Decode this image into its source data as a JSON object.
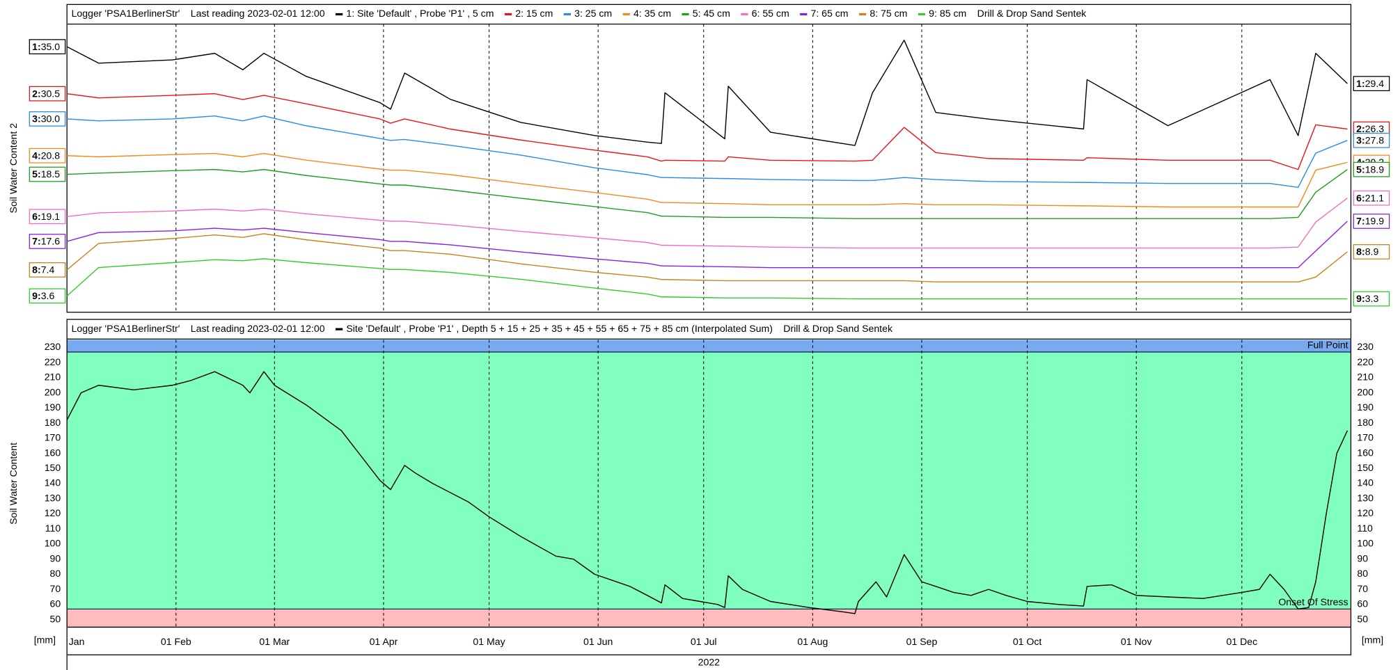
{
  "chart_data": [
    {
      "type": "line",
      "logger": "Logger 'PSA1BerlinerStr'",
      "last_reading": "Last reading 2023-02-01 12:00",
      "sensor": "Drill & Drop Sand Sentek",
      "ylabel": "Soil Water Content 2",
      "xlim": [
        "2022-01-01",
        "2023-01-01"
      ],
      "xticks": [
        "2022-02-01",
        "2022-03-01",
        "2022-04-01",
        "2022-05-01",
        "2022-06-01",
        "2022-07-01",
        "2022-08-01",
        "2022-09-01",
        "2022-10-01",
        "2022-11-01",
        "2022-12-01"
      ],
      "grid": true,
      "x": [
        "2022-01-01",
        "2022-01-10",
        "2022-01-31",
        "2022-02-12",
        "2022-02-20",
        "2022-02-26",
        "2022-03-10",
        "2022-03-31",
        "2022-04-03",
        "2022-04-07",
        "2022-04-20",
        "2022-05-10",
        "2022-05-31",
        "2022-06-15",
        "2022-06-19",
        "2022-06-20",
        "2022-07-07",
        "2022-07-08",
        "2022-07-20",
        "2022-08-13",
        "2022-08-18",
        "2022-08-27",
        "2022-09-05",
        "2022-09-20",
        "2022-10-17",
        "2022-10-18",
        "2022-11-10",
        "2022-12-09",
        "2022-12-17",
        "2022-12-22",
        "2022-12-31"
      ],
      "series": [
        {
          "name": "1: Site 'Default' , Probe 'P1' , 5 cm",
          "tag": "1:",
          "color": "#000000",
          "start_label": "35.0",
          "end_label": "29.4",
          "values": [
            35.0,
            32.5,
            33.0,
            34.0,
            31.5,
            34.0,
            30.5,
            26.5,
            25.5,
            31.0,
            27.0,
            23.5,
            21.5,
            20.5,
            20.3,
            28.0,
            21.0,
            29.0,
            22.0,
            20.0,
            28.0,
            36.0,
            25.0,
            24.0,
            22.5,
            30.0,
            23.0,
            30.0,
            21.5,
            34.0,
            29.4
          ]
        },
        {
          "name": "2: 15 cm",
          "tag": "2:",
          "color": "#e8141b",
          "start_label": "30.5",
          "end_label": "26.3",
          "values": [
            30.5,
            30.0,
            30.3,
            30.5,
            29.8,
            30.3,
            29.3,
            27.5,
            27.0,
            27.5,
            26.3,
            25.0,
            23.8,
            23.0,
            22.5,
            22.6,
            22.5,
            23.0,
            22.6,
            22.5,
            22.6,
            26.5,
            23.5,
            22.8,
            22.6,
            22.9,
            22.6,
            22.6,
            21.5,
            26.8,
            26.3
          ]
        },
        {
          "name": "3: 25 cm",
          "tag": "3:",
          "color": "#2a8ae8",
          "start_label": "30.0",
          "end_label": "27.8",
          "values": [
            30.0,
            29.8,
            30.0,
            30.3,
            29.8,
            30.3,
            29.3,
            28.0,
            27.8,
            27.9,
            27.3,
            26.3,
            25.0,
            24.3,
            24.0,
            24.0,
            23.9,
            23.9,
            23.8,
            23.7,
            23.7,
            24.0,
            23.8,
            23.6,
            23.5,
            23.5,
            23.4,
            23.4,
            23.0,
            26.5,
            27.8
          ]
        },
        {
          "name": "4: 35 cm",
          "tag": "4:",
          "color": "#f08a1c",
          "start_label": "20.8",
          "end_label": "20.2",
          "values": [
            20.8,
            20.7,
            20.9,
            21.0,
            20.7,
            21.0,
            20.4,
            19.6,
            19.5,
            19.5,
            19.1,
            18.3,
            17.5,
            16.9,
            16.6,
            16.6,
            16.5,
            16.5,
            16.4,
            16.4,
            16.4,
            16.5,
            16.4,
            16.4,
            16.3,
            16.3,
            16.2,
            16.2,
            16.2,
            19.5,
            20.2
          ]
        },
        {
          "name": "5: 45 cm",
          "tag": "5:",
          "color": "#1f9e1f",
          "start_label": "18.5",
          "end_label": "18.9",
          "values": [
            18.5,
            18.6,
            18.8,
            18.9,
            18.7,
            18.9,
            18.4,
            17.7,
            17.6,
            17.6,
            17.2,
            16.5,
            15.8,
            15.3,
            15.0,
            15.0,
            14.9,
            14.9,
            14.9,
            14.8,
            14.8,
            14.8,
            14.8,
            14.8,
            14.8,
            14.8,
            14.8,
            14.8,
            14.9,
            17.0,
            18.9
          ]
        },
        {
          "name": "6: 55 cm",
          "tag": "6:",
          "color": "#f06ec0",
          "start_label": "19.1",
          "end_label": "21.1",
          "values": [
            19.1,
            19.5,
            19.7,
            19.9,
            19.7,
            19.9,
            19.4,
            18.7,
            18.6,
            18.6,
            18.2,
            17.5,
            16.8,
            16.3,
            16.0,
            16.0,
            15.9,
            15.9,
            15.8,
            15.7,
            15.7,
            15.7,
            15.7,
            15.7,
            15.7,
            15.7,
            15.7,
            15.7,
            15.8,
            18.5,
            21.1
          ]
        },
        {
          "name": "7: 65 cm",
          "tag": "7:",
          "color": "#8b1ee8",
          "start_label": "17.6",
          "end_label": "19.9",
          "values": [
            17.6,
            18.6,
            18.8,
            19.1,
            18.9,
            19.1,
            18.6,
            17.8,
            17.6,
            17.6,
            17.2,
            16.4,
            15.6,
            15.1,
            14.8,
            14.8,
            14.7,
            14.7,
            14.6,
            14.6,
            14.6,
            14.6,
            14.6,
            14.6,
            14.6,
            14.6,
            14.6,
            14.6,
            14.6,
            16.5,
            19.9
          ]
        },
        {
          "name": "8: 75 cm",
          "tag": "8:",
          "color": "#c8841a",
          "start_label": "7.4",
          "end_label": "8.9",
          "values": [
            7.4,
            9.6,
            10.0,
            10.3,
            10.1,
            10.4,
            9.9,
            9.2,
            9.0,
            9.0,
            8.7,
            7.9,
            7.2,
            6.8,
            6.6,
            6.6,
            6.5,
            6.5,
            6.5,
            6.5,
            6.5,
            6.5,
            6.4,
            6.4,
            6.4,
            6.4,
            6.4,
            6.4,
            6.4,
            6.8,
            8.9
          ]
        },
        {
          "name": "9: 85 cm",
          "tag": "9:",
          "color": "#2ecc2e",
          "start_label": "3.6",
          "end_label": "3.3",
          "values": [
            3.6,
            6.5,
            7.0,
            7.3,
            7.2,
            7.4,
            7.0,
            6.4,
            6.3,
            6.3,
            6.0,
            5.3,
            4.4,
            3.8,
            3.5,
            3.5,
            3.4,
            3.4,
            3.4,
            3.3,
            3.3,
            3.3,
            3.3,
            3.3,
            3.3,
            3.3,
            3.3,
            3.3,
            3.3,
            3.3,
            3.3
          ]
        }
      ]
    },
    {
      "type": "line",
      "logger": "Logger 'PSA1BerlinerStr'",
      "last_reading": "Last reading 2023-02-01 12:00",
      "sensor": "Drill & Drop Sand Sentek",
      "ylabel": "Soil Water Content",
      "unit": "[mm]",
      "xlabel": "2022",
      "xlim": [
        "2022-01-01",
        "2023-01-01"
      ],
      "xticks": [
        {
          "value": "2022-01-01",
          "label": "Jan"
        },
        {
          "value": "2022-02-01",
          "label": "01 Feb"
        },
        {
          "value": "2022-03-01",
          "label": "01 Mar"
        },
        {
          "value": "2022-04-01",
          "label": "01 Apr"
        },
        {
          "value": "2022-05-01",
          "label": "01 May"
        },
        {
          "value": "2022-06-01",
          "label": "01 Jun"
        },
        {
          "value": "2022-07-01",
          "label": "01 Jul"
        },
        {
          "value": "2022-08-01",
          "label": "01 Aug"
        },
        {
          "value": "2022-09-01",
          "label": "01 Sep"
        },
        {
          "value": "2022-10-01",
          "label": "01 Oct"
        },
        {
          "value": "2022-11-01",
          "label": "01 Nov"
        },
        {
          "value": "2022-12-01",
          "label": "01 Dec"
        }
      ],
      "ylim": [
        45,
        235
      ],
      "yticks": [
        50,
        60,
        70,
        80,
        90,
        100,
        110,
        120,
        130,
        140,
        150,
        160,
        170,
        180,
        190,
        200,
        210,
        220,
        230
      ],
      "grid": true,
      "zone_color": "#80ffbf",
      "thresholds": [
        {
          "label": "Full Point",
          "value": 227,
          "color": "#78aaf0",
          "side": "above"
        },
        {
          "label": "Onset Of Stress",
          "value": 57,
          "color": "#ffbcbc",
          "side": "below"
        }
      ],
      "x": [
        "2022-01-01",
        "2022-01-05",
        "2022-01-10",
        "2022-01-20",
        "2022-01-31",
        "2022-02-05",
        "2022-02-12",
        "2022-02-20",
        "2022-02-22",
        "2022-02-26",
        "2022-03-01",
        "2022-03-10",
        "2022-03-20",
        "2022-03-31",
        "2022-04-03",
        "2022-04-07",
        "2022-04-10",
        "2022-04-15",
        "2022-04-25",
        "2022-05-01",
        "2022-05-10",
        "2022-05-20",
        "2022-05-25",
        "2022-05-31",
        "2022-06-05",
        "2022-06-10",
        "2022-06-15",
        "2022-06-19",
        "2022-06-20",
        "2022-06-25",
        "2022-06-30",
        "2022-07-05",
        "2022-07-07",
        "2022-07-08",
        "2022-07-12",
        "2022-07-20",
        "2022-07-31",
        "2022-08-10",
        "2022-08-13",
        "2022-08-14",
        "2022-08-19",
        "2022-08-22",
        "2022-08-27",
        "2022-09-01",
        "2022-09-05",
        "2022-09-10",
        "2022-09-15",
        "2022-09-20",
        "2022-09-25",
        "2022-10-01",
        "2022-10-10",
        "2022-10-17",
        "2022-10-18",
        "2022-10-25",
        "2022-11-01",
        "2022-11-10",
        "2022-11-20",
        "2022-12-01",
        "2022-12-06",
        "2022-12-09",
        "2022-12-13",
        "2022-12-17",
        "2022-12-20",
        "2022-12-22",
        "2022-12-25",
        "2022-12-28",
        "2022-12-31"
      ],
      "series": [
        {
          "name": "Site 'Default' , Probe 'P1' , Depth 5 + 15 + 25 + 35 + 45 + 55 + 65 + 75 + 85 cm (Interpolated Sum)",
          "color": "#000000",
          "values": [
            182,
            200,
            205,
            202,
            205,
            208,
            214,
            205,
            200,
            214,
            205,
            192,
            175,
            142,
            136,
            152,
            147,
            140,
            128,
            118,
            105,
            92,
            90,
            80,
            76,
            72,
            66,
            61,
            73,
            64,
            62,
            60,
            58,
            79,
            70,
            62,
            58,
            55,
            54,
            62,
            75,
            65,
            93,
            75,
            72,
            68,
            66,
            70,
            66,
            62,
            60,
            59,
            72,
            73,
            66,
            65,
            64,
            68,
            70,
            80,
            70,
            57,
            58,
            75,
            120,
            160,
            175
          ]
        }
      ]
    }
  ]
}
